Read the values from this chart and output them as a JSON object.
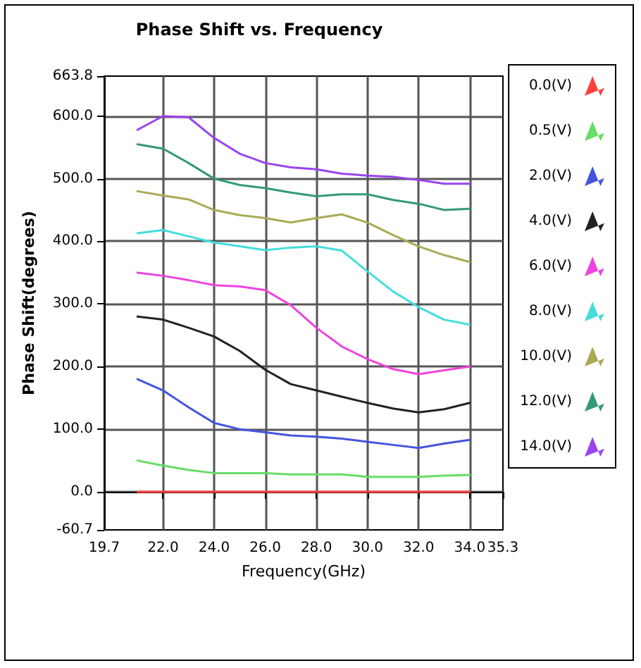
{
  "chart_data": {
    "type": "line",
    "title": "Phase Shift vs. Frequency",
    "xlabel": "Frequency(GHz)",
    "ylabel": "Phase Shift(degrees)",
    "x": [
      21,
      22,
      23,
      24,
      25,
      26,
      27,
      28,
      29,
      30,
      31,
      32,
      33,
      34
    ],
    "xlim": [
      19.7,
      35.3
    ],
    "xticks": [
      19.7,
      {
        "value": 22,
        "label": "22.0"
      },
      {
        "value": 24,
        "label": "24.0"
      },
      {
        "value": 26,
        "label": "26.0"
      },
      {
        "value": 28,
        "label": "28.0"
      },
      {
        "value": 30,
        "label": "30.0"
      },
      {
        "value": 32,
        "label": "32.0"
      },
      {
        "value": 34,
        "label": "34.0"
      },
      35.3
    ],
    "ylim": [
      -60.7,
      663.8
    ],
    "yticks": [
      -60.7,
      {
        "value": 0,
        "label": "0.0"
      },
      {
        "value": 100,
        "label": "100.0"
      },
      {
        "value": 200,
        "label": "200.0"
      },
      {
        "value": 300,
        "label": "300.0"
      },
      {
        "value": 400,
        "label": "400.0"
      },
      {
        "value": 500,
        "label": "500.0"
      },
      {
        "value": 600,
        "label": "600.0"
      },
      663.8
    ],
    "grid": true,
    "legend": "right",
    "marker": "none",
    "line_style": "solid",
    "series": [
      {
        "name": "0.0(V)",
        "color": "#ff4040",
        "values": [
          0,
          0,
          0,
          0,
          0,
          0,
          0,
          0,
          0,
          0,
          0,
          0,
          0,
          0
        ]
      },
      {
        "name": "0.5(V)",
        "color": "#66dd66",
        "values": [
          50,
          42,
          35,
          30,
          30,
          30,
          28,
          28,
          28,
          24,
          24,
          24,
          26,
          27
        ]
      },
      {
        "name": "2.0(V)",
        "color": "#4455dd",
        "values": [
          180,
          162,
          135,
          110,
          100,
          95,
          90,
          88,
          85,
          80,
          75,
          70,
          77,
          83
        ]
      },
      {
        "name": "4.0(V)",
        "color": "#222222",
        "values": [
          280,
          275,
          262,
          248,
          225,
          195,
          172,
          162,
          152,
          142,
          133,
          127,
          132,
          142
        ]
      },
      {
        "name": "6.0(V)",
        "color": "#ee44dd",
        "values": [
          350,
          345,
          338,
          330,
          328,
          322,
          298,
          262,
          232,
          212,
          196,
          188,
          194,
          200
        ]
      },
      {
        "name": "8.0(V)",
        "color": "#44dddd",
        "values": [
          413,
          418,
          408,
          398,
          392,
          386,
          390,
          392,
          385,
          352,
          320,
          295,
          275,
          267
        ]
      },
      {
        "name": "10.0(V)",
        "color": "#aaaa55",
        "values": [
          480,
          473,
          467,
          450,
          442,
          437,
          430,
          437,
          443,
          430,
          410,
          392,
          378,
          367
        ]
      },
      {
        "name": "12.0(V)",
        "color": "#339977",
        "values": [
          555,
          548,
          525,
          500,
          490,
          485,
          478,
          472,
          475,
          475,
          466,
          460,
          450,
          452
        ]
      },
      {
        "name": "14.0(V)",
        "color": "#9944ee",
        "values": [
          578,
          600,
          598,
          565,
          540,
          525,
          518,
          515,
          508,
          505,
          503,
          498,
          492,
          492
        ]
      }
    ]
  }
}
